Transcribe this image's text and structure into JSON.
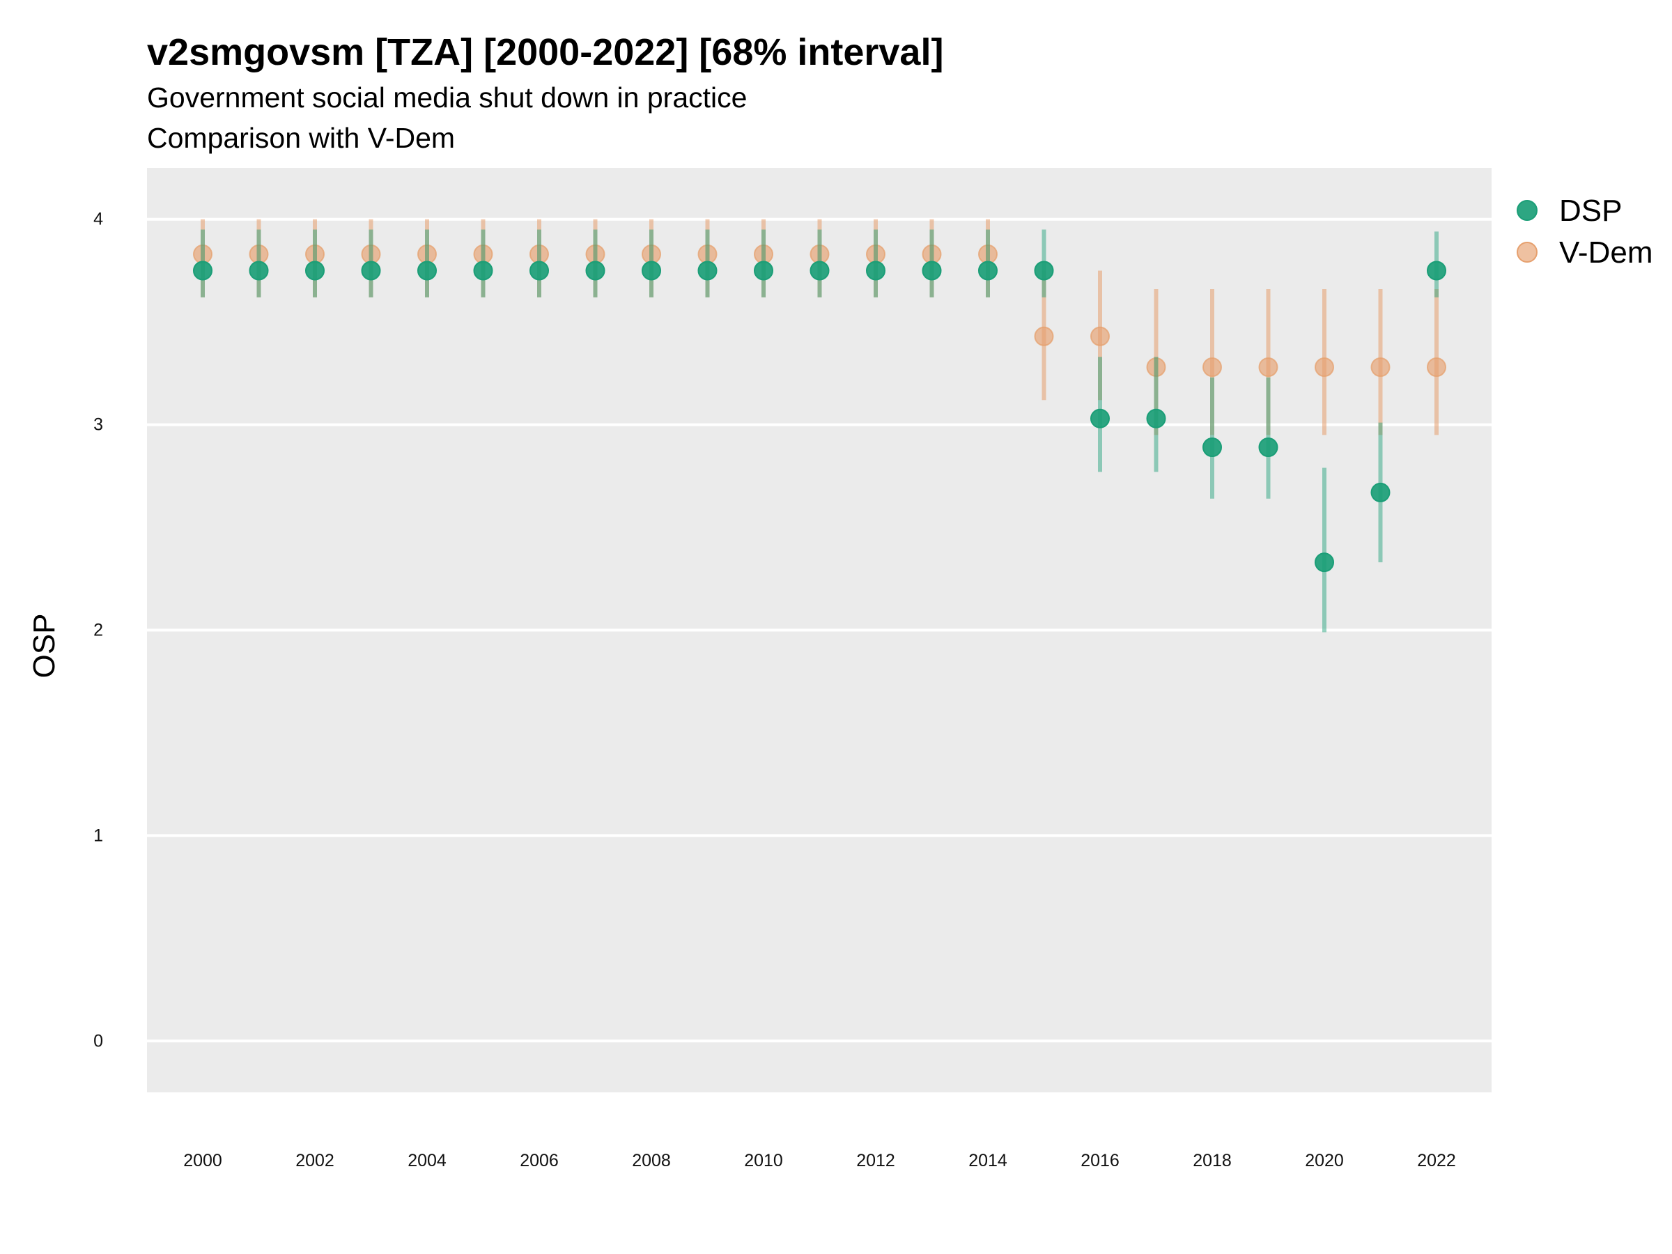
{
  "chart_data": {
    "type": "scatter",
    "title": "v2smgovsm [TZA] [2000-2022] [68% interval]",
    "subtitle_lines": [
      "Government social media shut down in practice",
      "Comparison with V-Dem"
    ],
    "xlabel": "",
    "ylabel": "OSP",
    "x": [
      2000,
      2001,
      2002,
      2003,
      2004,
      2005,
      2006,
      2007,
      2008,
      2009,
      2010,
      2011,
      2012,
      2013,
      2014,
      2015,
      2016,
      2017,
      2018,
      2019,
      2020,
      2021,
      2022
    ],
    "x_ticks": [
      2000,
      2002,
      2004,
      2006,
      2008,
      2010,
      2012,
      2014,
      2016,
      2018,
      2020,
      2022
    ],
    "y_ticks": [
      0,
      1,
      2,
      3,
      4
    ],
    "ylim": [
      -0.25,
      4.25
    ],
    "grid": true,
    "legend_position": "right",
    "series": [
      {
        "name": "DSP",
        "color": "#1b9e77",
        "values": [
          3.75,
          3.75,
          3.75,
          3.75,
          3.75,
          3.75,
          3.75,
          3.75,
          3.75,
          3.75,
          3.75,
          3.75,
          3.75,
          3.75,
          3.75,
          3.75,
          3.03,
          3.03,
          2.89,
          2.89,
          2.33,
          2.67,
          3.75
        ],
        "lower": [
          3.62,
          3.62,
          3.62,
          3.62,
          3.62,
          3.62,
          3.62,
          3.62,
          3.62,
          3.62,
          3.62,
          3.62,
          3.62,
          3.62,
          3.62,
          3.62,
          2.77,
          2.77,
          2.64,
          2.64,
          1.99,
          2.33,
          3.62
        ],
        "upper": [
          3.95,
          3.95,
          3.95,
          3.95,
          3.95,
          3.95,
          3.95,
          3.95,
          3.95,
          3.95,
          3.95,
          3.95,
          3.95,
          3.95,
          3.95,
          3.95,
          3.33,
          3.33,
          3.23,
          3.23,
          2.79,
          3.01,
          3.94
        ]
      },
      {
        "name": "V-Dem",
        "color": "#e6a06e",
        "values": [
          3.83,
          3.83,
          3.83,
          3.83,
          3.83,
          3.83,
          3.83,
          3.83,
          3.83,
          3.83,
          3.83,
          3.83,
          3.83,
          3.83,
          3.83,
          3.43,
          3.43,
          3.28,
          3.28,
          3.28,
          3.28,
          3.28,
          3.28
        ],
        "lower": [
          3.62,
          3.62,
          3.62,
          3.62,
          3.62,
          3.62,
          3.62,
          3.62,
          3.62,
          3.62,
          3.62,
          3.62,
          3.62,
          3.62,
          3.62,
          3.12,
          3.12,
          2.95,
          2.95,
          2.95,
          2.95,
          2.95,
          2.95
        ],
        "upper": [
          4.0,
          4.0,
          4.0,
          4.0,
          4.0,
          4.0,
          4.0,
          4.0,
          4.0,
          4.0,
          4.0,
          4.0,
          4.0,
          4.0,
          4.0,
          3.75,
          3.75,
          3.66,
          3.66,
          3.66,
          3.66,
          3.66,
          3.66
        ]
      }
    ]
  }
}
